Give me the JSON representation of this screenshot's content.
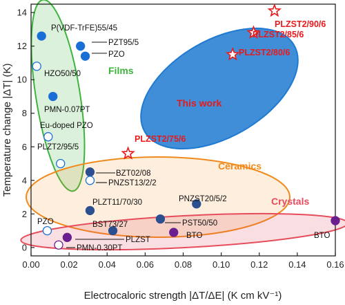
{
  "chart_data": {
    "type": "scatter",
    "xlabel": "Electrocaloric strength |ΔT/ΔE| (K cm kV⁻¹)",
    "ylabel": "Temperature change |ΔT| (K)",
    "xlim": [
      0,
      0.16
    ],
    "ylim": [
      -0.5,
      14.5
    ],
    "x_ticks": [
      "0.00",
      "0.02",
      "0.04",
      "0.06",
      "0.08",
      "0.10",
      "0.12",
      "0.14",
      "0.16"
    ],
    "y_ticks": [
      "0",
      "2",
      "4",
      "6",
      "8",
      "10",
      "12",
      "14"
    ],
    "colors": {
      "films": "#3db33d",
      "ceramics": "#f08a1c",
      "crystals": "#e64c5c",
      "this_work": "#1f7ad1",
      "this_work_text": "#e8191b",
      "point_blue": "#1a6fd6",
      "point_navy": "#2c4f8f",
      "point_purple": "#6b1e8f",
      "hollow": "#ffffff"
    },
    "regions": [
      {
        "name": "Films",
        "color_key": "films"
      },
      {
        "name": "This work",
        "color_key": "this_work_text"
      },
      {
        "name": "Ceramics",
        "color_key": "ceramics"
      },
      {
        "name": "Crystals",
        "color_key": "crystals"
      }
    ],
    "points": [
      {
        "label": "P(VDF-TrFE)55/45",
        "x": 0.0055,
        "y": 12.6,
        "marker": "circle",
        "fill": "point_blue",
        "group": "films"
      },
      {
        "label": "PZT95/5",
        "x": 0.026,
        "y": 12.0,
        "marker": "circle",
        "fill": "point_blue",
        "group": "films"
      },
      {
        "label": "PZO",
        "x": 0.0285,
        "y": 11.4,
        "marker": "circle",
        "fill": "point_blue",
        "group": "films"
      },
      {
        "label": "HZO50/50",
        "x": 0.003,
        "y": 10.8,
        "marker": "circle",
        "fill": "hollow",
        "group": "films"
      },
      {
        "label": "PMN-0.07PT",
        "x": 0.0115,
        "y": 9.0,
        "marker": "circle",
        "fill": "point_blue",
        "group": "films"
      },
      {
        "label": "Eu-doped PZO",
        "x": 0.009,
        "y": 6.6,
        "marker": "circle",
        "fill": "hollow",
        "group": "films"
      },
      {
        "label": "PLZT2/95/5",
        "x": 0.0155,
        "y": 5.0,
        "marker": "circle",
        "fill": "hollow",
        "group": "films"
      },
      {
        "label": "BZT02/08",
        "x": 0.031,
        "y": 4.5,
        "marker": "circle",
        "fill": "point_navy",
        "group": "ceramics"
      },
      {
        "label": "PNZST13/2/2",
        "x": 0.031,
        "y": 4.0,
        "marker": "circle",
        "fill": "hollow",
        "group": "ceramics"
      },
      {
        "label": "PLZT11/70/30",
        "x": 0.031,
        "y": 2.2,
        "marker": "circle",
        "fill": "point_navy",
        "group": "ceramics"
      },
      {
        "label": "PNZST20/5/2",
        "x": 0.087,
        "y": 2.6,
        "marker": "circle",
        "fill": "point_navy",
        "group": "ceramics"
      },
      {
        "label": "BST73/27",
        "x": 0.043,
        "y": 1.0,
        "marker": "circle",
        "fill": "point_navy",
        "group": "ceramics"
      },
      {
        "label": "PST50/50",
        "x": 0.068,
        "y": 1.7,
        "marker": "circle",
        "fill": "point_navy",
        "group": "ceramics"
      },
      {
        "label": "PZO",
        "x": 0.0085,
        "y": 1.0,
        "marker": "circle",
        "fill": "hollow",
        "group": "ceramics"
      },
      {
        "label": "PLZST",
        "x": 0.019,
        "y": 0.6,
        "marker": "circle",
        "fill": "point_purple",
        "group": "crystals"
      },
      {
        "label": "PMN-0.30PT",
        "x": 0.0145,
        "y": 0.15,
        "marker": "circle",
        "fill": "hollow",
        "group": "crystals"
      },
      {
        "label": "BTO",
        "x": 0.075,
        "y": 0.9,
        "marker": "circle",
        "fill": "point_purple",
        "group": "crystals"
      },
      {
        "label": "BTO",
        "x": 0.16,
        "y": 1.6,
        "marker": "circle",
        "fill": "point_purple",
        "group": "crystals"
      },
      {
        "label": "PLZST2/90/6",
        "x": 0.128,
        "y": 14.1,
        "marker": "star",
        "group": "this_work"
      },
      {
        "label": "PLZST2/85/6",
        "x": 0.117,
        "y": 12.8,
        "marker": "star",
        "group": "this_work"
      },
      {
        "label": "PLZST2/80/6",
        "x": 0.106,
        "y": 11.5,
        "marker": "star",
        "group": "this_work"
      },
      {
        "label": "PLZST2/75/6",
        "x": 0.051,
        "y": 5.6,
        "marker": "star",
        "group": "this_work"
      }
    ]
  }
}
